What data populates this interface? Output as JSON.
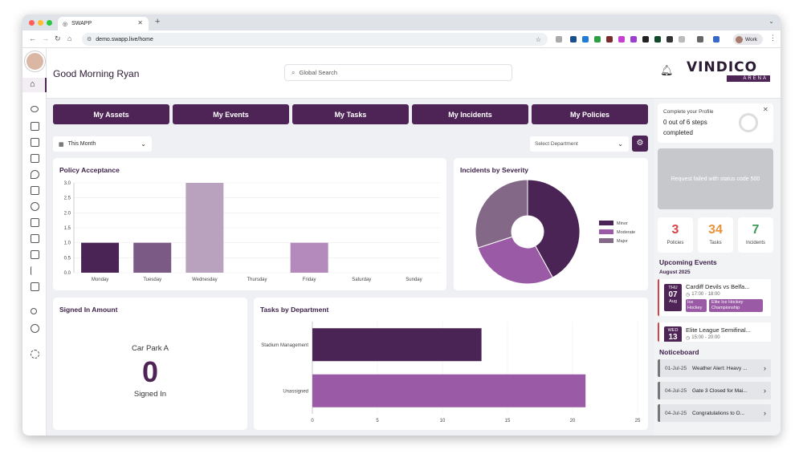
{
  "browser": {
    "tab_title": "SWAPP",
    "url": "demo.swapp.live/home",
    "profile_label": "Work"
  },
  "header": {
    "greeting": "Good Morning Ryan",
    "search_placeholder": "Global Search",
    "logo_top": "VINDICO",
    "logo_bottom": "ARENA"
  },
  "tiles": [
    "My Assets",
    "My Events",
    "My Tasks",
    "My Incidents",
    "My Policies"
  ],
  "filters": {
    "period": "This Month",
    "department_placeholder": "Select Department"
  },
  "policy_chart": {
    "title": "Policy Acceptance",
    "yticks": [
      "3.0",
      "2.5",
      "2.0",
      "1.5",
      "1.0",
      "0.5",
      "0.0"
    ]
  },
  "severity_chart": {
    "title": "Incidents by Severity"
  },
  "signed_in": {
    "title": "Signed In Amount",
    "location": "Car Park A",
    "count": "0",
    "label": "Signed In"
  },
  "tasks_chart": {
    "title": "Tasks by Department"
  },
  "chart_data": [
    {
      "type": "bar",
      "title": "Policy Acceptance",
      "categories": [
        "Monday",
        "Tuesday",
        "Wednesday",
        "Thursday",
        "Friday",
        "Saturday",
        "Sunday"
      ],
      "values": [
        1,
        1,
        3,
        0,
        1,
        0,
        0
      ],
      "ylim": [
        0,
        3
      ],
      "colors": [
        "#4a2454",
        "#7c5a86",
        "#b8a2be",
        "#cccccc",
        "#b48abc",
        "#cccccc",
        "#cccccc"
      ]
    },
    {
      "type": "pie",
      "title": "Incidents by Severity",
      "series": [
        {
          "name": "Minor",
          "value": 42
        },
        {
          "name": "Moderate",
          "value": 28
        },
        {
          "name": "Major",
          "value": 30
        }
      ],
      "colors": [
        "#4a2454",
        "#9a5aa6",
        "#836888"
      ],
      "donut": true
    },
    {
      "type": "bar",
      "orientation": "horizontal",
      "title": "Tasks by Department",
      "categories": [
        "Stadium Management",
        "Unassigned"
      ],
      "values": [
        13,
        21
      ],
      "xlim": [
        0,
        25
      ],
      "xticks": [
        "0",
        "5",
        "10",
        "15",
        "20",
        "25"
      ],
      "colors": [
        "#4a2454",
        "#9a5aa6"
      ]
    }
  ],
  "profile_card": {
    "title": "Complete your Profile",
    "steps": "0 out of 6 steps",
    "status": "completed",
    "progress": 0
  },
  "error_message": "Request failed with status code 500",
  "stats": [
    {
      "value": "3",
      "label": "Policies",
      "color": "#d64545"
    },
    {
      "value": "34",
      "label": "Tasks",
      "color": "#e8923c"
    },
    {
      "value": "7",
      "label": "Incidents",
      "color": "#3d9b54"
    }
  ],
  "events": {
    "title": "Upcoming Events",
    "month": "August 2025",
    "items": [
      {
        "dow": "THU",
        "day": "07",
        "mon": "Aug",
        "name": "Cardiff Devils vs Belfa...",
        "time": "17:00 - 18:00",
        "tags": [
          "Ice Hockey",
          "Elite Ice Hockey Championship"
        ]
      },
      {
        "dow": "WED",
        "day": "13",
        "mon": "",
        "name": "Elite League Semifinal...",
        "time": "15:00 - 20:00",
        "tags": []
      }
    ]
  },
  "noticeboard": {
    "title": "Noticeboard",
    "items": [
      {
        "date": "01-Jul-25",
        "text": "Weather Alert: Heavy ..."
      },
      {
        "date": "04-Jul-25",
        "text": "Gate 3 Closed for Mai..."
      },
      {
        "date": "04-Jul-25",
        "text": "Congratulations to O..."
      }
    ]
  }
}
